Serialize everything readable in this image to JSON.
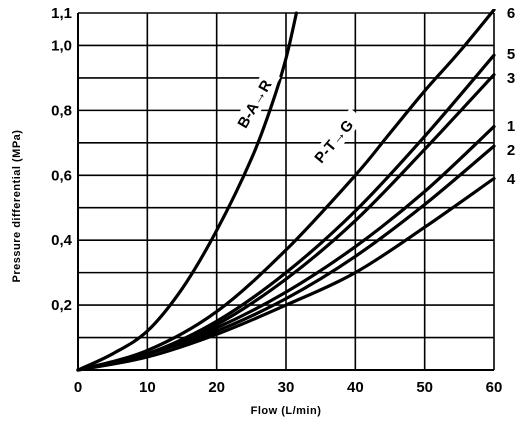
{
  "chart_data": {
    "type": "line",
    "title": "",
    "xlabel": "Flow (L/min)",
    "ylabel": "Pressure differential (MPa)",
    "xlim": [
      0,
      60
    ],
    "ylim": [
      0,
      1.1
    ],
    "x_ticks": [
      0,
      10,
      20,
      30,
      40,
      50,
      60
    ],
    "x_tick_labels": [
      "0",
      "10",
      "20",
      "30",
      "40",
      "50",
      "60"
    ],
    "y_ticks": [
      0.2,
      0.4,
      0.6,
      0.8,
      1.0,
      1.1
    ],
    "y_tick_labels": [
      "0,2",
      "0,4",
      "0,6",
      "0,8",
      "1,0",
      "1,1"
    ],
    "grid": true,
    "annotations": [
      "B-A→R",
      "P-T→G"
    ],
    "series": [
      {
        "name": "B-A→R",
        "x": [
          0,
          5,
          10,
          15,
          20,
          25,
          28,
          30,
          31.5
        ],
        "y": [
          0,
          0.05,
          0.12,
          0.25,
          0.43,
          0.65,
          0.82,
          0.96,
          1.1
        ]
      },
      {
        "name": "6",
        "x": [
          0,
          10,
          20,
          30,
          40,
          45,
          50,
          55,
          60
        ],
        "y": [
          0,
          0.06,
          0.18,
          0.37,
          0.6,
          0.73,
          0.86,
          0.98,
          1.11
        ]
      },
      {
        "name": "5",
        "x": [
          0,
          10,
          20,
          30,
          40,
          50,
          60
        ],
        "y": [
          0,
          0.05,
          0.15,
          0.3,
          0.49,
          0.72,
          0.97
        ]
      },
      {
        "name": "3",
        "x": [
          0,
          10,
          20,
          30,
          40,
          50,
          60
        ],
        "y": [
          0,
          0.05,
          0.14,
          0.28,
          0.46,
          0.68,
          0.91
        ]
      },
      {
        "name": "1",
        "x": [
          0,
          10,
          20,
          30,
          40,
          50,
          60
        ],
        "y": [
          0,
          0.05,
          0.13,
          0.24,
          0.38,
          0.55,
          0.75
        ]
      },
      {
        "name": "2",
        "x": [
          0,
          10,
          20,
          30,
          40,
          50,
          60
        ],
        "y": [
          0,
          0.05,
          0.12,
          0.22,
          0.35,
          0.51,
          0.69
        ]
      },
      {
        "name": "4",
        "x": [
          0,
          10,
          20,
          30,
          40,
          50,
          60
        ],
        "y": [
          0,
          0.04,
          0.11,
          0.2,
          0.3,
          0.44,
          0.59
        ]
      }
    ]
  }
}
